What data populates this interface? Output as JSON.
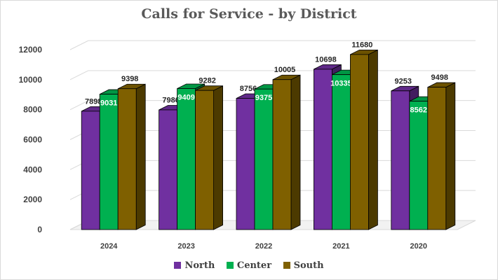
{
  "chart_data": {
    "type": "bar",
    "title": "Calls for Service - by District",
    "categories": [
      "2024",
      "2023",
      "2022",
      "2021",
      "2020"
    ],
    "series": [
      {
        "name": "North",
        "color": "#7030a0",
        "values": [
          7898,
          7986,
          8756,
          10698,
          9253
        ]
      },
      {
        "name": "Center",
        "color": "#00b050",
        "values": [
          9031,
          9409,
          9375,
          10335,
          8562
        ]
      },
      {
        "name": "South",
        "color": "#7f6000",
        "values": [
          9398,
          9282,
          10005,
          11680,
          9498
        ]
      }
    ],
    "ylim": [
      0,
      12000
    ],
    "yticks": [
      0,
      2000,
      4000,
      6000,
      8000,
      10000,
      12000
    ],
    "grid": true,
    "legend_position": "bottom",
    "style": "3d-clustered-column"
  }
}
